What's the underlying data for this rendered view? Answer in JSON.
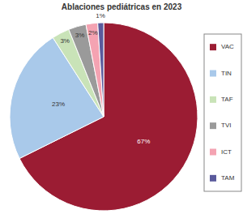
{
  "chart_data": {
    "type": "pie",
    "title": "Ablaciones pediátricas en 2023",
    "categories": [
      "VAC",
      "TIN",
      "TAF",
      "TVI",
      "ICT",
      "TAM"
    ],
    "values": [
      67,
      23,
      3,
      3,
      2,
      1
    ],
    "value_labels": [
      "67%",
      "23%",
      "3%",
      "3%",
      "2%",
      "1%"
    ],
    "colors": [
      "#9b1c33",
      "#a9c9ea",
      "#c9e3b8",
      "#9a9a9a",
      "#f4a3b2",
      "#5a5a9c"
    ],
    "data_labels": true,
    "legend": "right"
  }
}
